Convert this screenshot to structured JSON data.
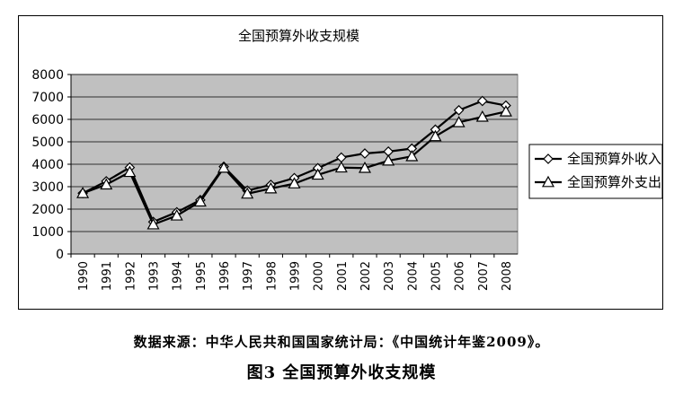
{
  "chart_data": {
    "type": "line",
    "title": "全国预算外收支规模",
    "categories": [
      "1990",
      "1991",
      "1992",
      "1993",
      "1994",
      "1995",
      "1996",
      "1997",
      "1998",
      "1999",
      "2000",
      "2001",
      "2002",
      "2003",
      "2004",
      "2005",
      "2006",
      "2007",
      "2008"
    ],
    "series": [
      {
        "name": "全国预算外收入",
        "marker": "diamond",
        "values": [
          2708,
          3243,
          3855,
          1432,
          1862,
          2407,
          3893,
          2826,
          3083,
          3385,
          3826,
          4300,
          4479,
          4566,
          4699,
          5544,
          6408,
          6820,
          6617
        ]
      },
      {
        "name": "全国预算外支出",
        "marker": "triangle",
        "values": [
          2707,
          3093,
          3649,
          1314,
          1710,
          2332,
          3838,
          2685,
          2918,
          3139,
          3529,
          3850,
          3831,
          4156,
          4352,
          5243,
          5867,
          6112,
          6347
        ]
      }
    ],
    "ylim": [
      0,
      8000
    ],
    "yticks": [
      "0",
      "1000",
      "2000",
      "3000",
      "4000",
      "5000",
      "6000",
      "7000",
      "8000"
    ],
    "grid": true,
    "legend_position": "right",
    "colors": {
      "plot_bg": "#c0c0c0",
      "line": "#000000",
      "marker_fill": "#ffffff"
    }
  },
  "source_note": "数据来源：中华人民共和国国家统计局：《中国统计年鉴2009》。",
  "figure_caption": "图3  全国预算外收支规模"
}
